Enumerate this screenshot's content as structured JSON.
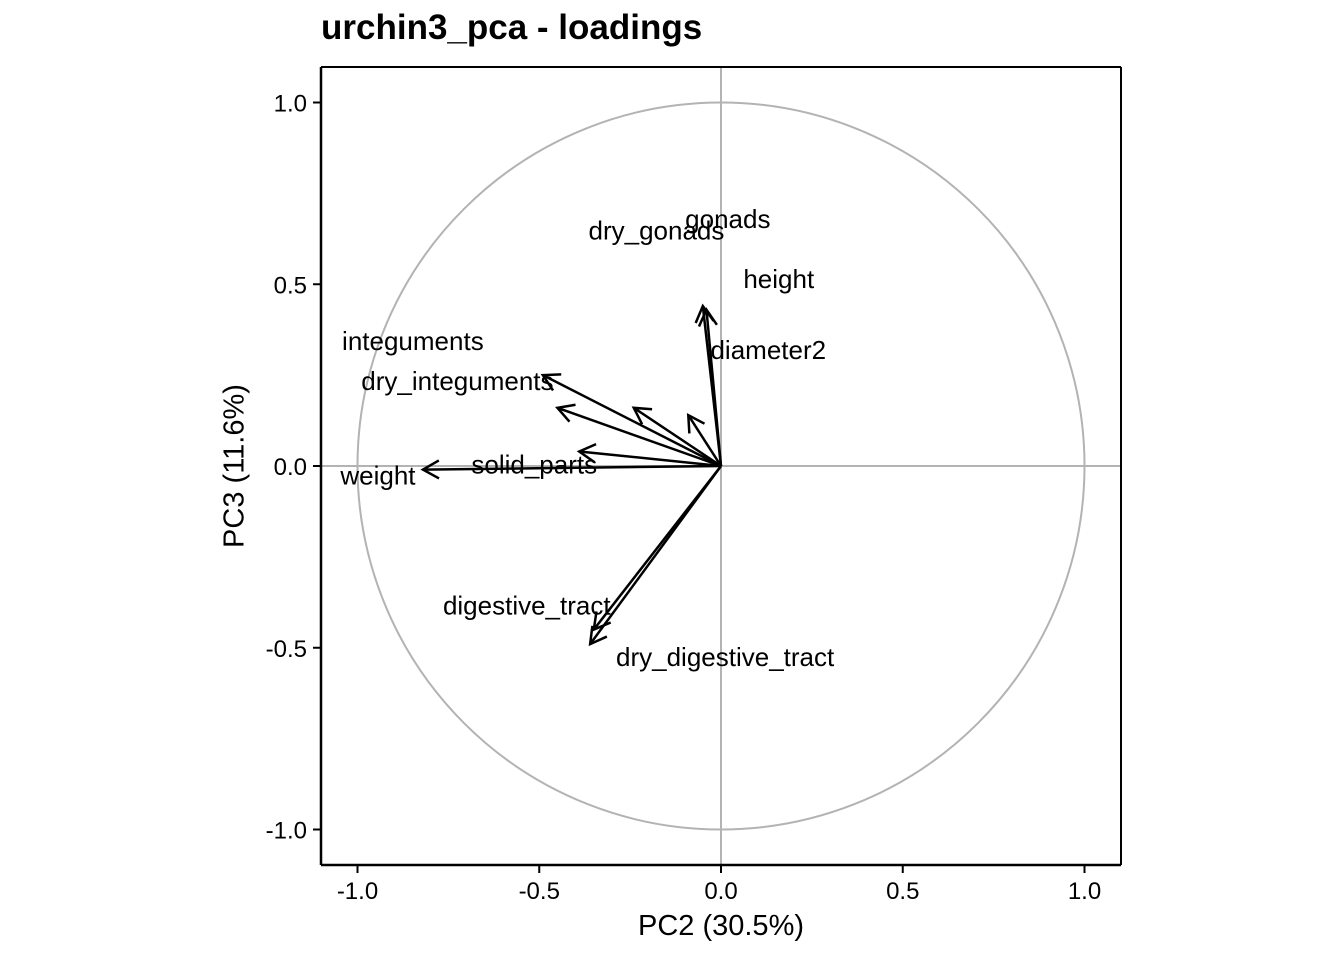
{
  "chart_data": {
    "type": "scatter",
    "subtype": "pca-loadings",
    "title": "urchin3_pca - loadings",
    "xlabel": "PC2 (30.5%)",
    "ylabel": "PC3 (11.6%)",
    "xlim": [
      -1.1,
      1.1
    ],
    "ylim": [
      -1.1,
      1.1
    ],
    "x_ticks": [
      -1.0,
      -0.5,
      0.0,
      0.5,
      1.0
    ],
    "y_ticks": [
      -1.0,
      -0.5,
      0.0,
      0.5,
      1.0
    ],
    "x_tick_labels": [
      "-1.0",
      "-0.5",
      "0.0",
      "0.5",
      "1.0"
    ],
    "y_tick_labels": [
      "-1.0",
      "-0.5",
      "0.0",
      "0.5",
      "1.0"
    ],
    "grid": false,
    "reference_lines": [
      0,
      0
    ],
    "unit_circle": true,
    "colors": {
      "arrows": "#000000",
      "circle": "#b3b3b3",
      "zero_lines": "#b3b3b3"
    },
    "series": [
      {
        "label": "weight",
        "x": -0.82,
        "y": -0.01
      },
      {
        "label": "solid_parts",
        "x": -0.39,
        "y": 0.04
      },
      {
        "label": "integuments",
        "x": -0.49,
        "y": 0.25
      },
      {
        "label": "dry_integuments",
        "x": -0.45,
        "y": 0.16
      },
      {
        "label": "dry_gonads",
        "x": -0.04,
        "y": 0.43
      },
      {
        "label": "gonads",
        "x": -0.05,
        "y": 0.44
      },
      {
        "label": "diameter2",
        "x": -0.09,
        "y": 0.14
      },
      {
        "label": "height",
        "x": -0.24,
        "y": 0.16
      },
      {
        "label": "digestive_tract",
        "x": -0.35,
        "y": -0.45
      },
      {
        "label": "dry_digestive_tract",
        "x": -0.36,
        "y": -0.49
      }
    ]
  }
}
